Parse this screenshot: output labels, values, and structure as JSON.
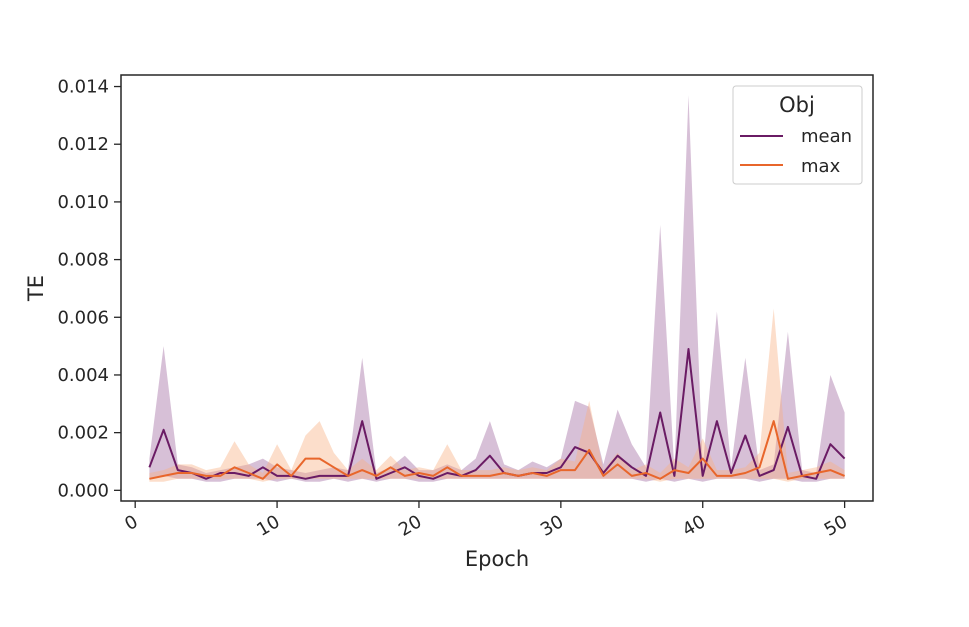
{
  "chart_data": {
    "type": "line",
    "xlabel": "Epoch",
    "ylabel": "TE",
    "xlim": [
      -1,
      52
    ],
    "ylim": [
      -0.00037,
      0.0144
    ],
    "x_ticks": [
      0,
      10,
      20,
      30,
      40,
      50
    ],
    "x_tick_labels": [
      "0",
      "10",
      "20",
      "30",
      "40",
      "50"
    ],
    "y_ticks": [
      0.0,
      0.002,
      0.004,
      0.006,
      0.008,
      0.01,
      0.012,
      0.014
    ],
    "y_tick_labels": [
      "0.000",
      "0.002",
      "0.004",
      "0.006",
      "0.008",
      "0.010",
      "0.012",
      "0.014"
    ],
    "grid": false,
    "legend": {
      "title": "Obj",
      "placement": "top-right"
    },
    "x": [
      1,
      2,
      3,
      4,
      5,
      6,
      7,
      8,
      9,
      10,
      11,
      12,
      13,
      14,
      15,
      16,
      17,
      18,
      19,
      20,
      21,
      22,
      23,
      24,
      25,
      26,
      27,
      28,
      29,
      30,
      31,
      32,
      33,
      34,
      35,
      36,
      37,
      38,
      39,
      40,
      41,
      42,
      43,
      44,
      45,
      46,
      47,
      48,
      49,
      50
    ],
    "series": [
      {
        "name": "mean",
        "color": "#6a1b64",
        "band_color": "#a06aa0",
        "values": [
          0.0008,
          0.0021,
          0.0007,
          0.0006,
          0.0004,
          0.0006,
          0.0006,
          0.0005,
          0.0008,
          0.0005,
          0.0005,
          0.0004,
          0.0005,
          0.0005,
          0.0005,
          0.0024,
          0.0004,
          0.0006,
          0.0008,
          0.0005,
          0.0004,
          0.0006,
          0.0005,
          0.0007,
          0.0012,
          0.0006,
          0.0005,
          0.0006,
          0.0006,
          0.0008,
          0.0015,
          0.0013,
          0.0006,
          0.0012,
          0.0008,
          0.0005,
          0.0027,
          0.0005,
          0.0049,
          0.0005,
          0.0024,
          0.0006,
          0.0019,
          0.0005,
          0.0007,
          0.0022,
          0.0005,
          0.0004,
          0.0016,
          0.0011
        ],
        "lower": [
          0.0004,
          0.0005,
          0.0004,
          0.0004,
          0.0003,
          0.0003,
          0.0004,
          0.0004,
          0.0004,
          0.0003,
          0.0004,
          0.0003,
          0.0003,
          0.0004,
          0.0003,
          0.0004,
          0.0003,
          0.0004,
          0.0004,
          0.0003,
          0.0003,
          0.0004,
          0.0004,
          0.0004,
          0.0004,
          0.0004,
          0.0004,
          0.0004,
          0.0004,
          0.0004,
          0.0004,
          0.0004,
          0.0004,
          0.0004,
          0.0004,
          0.0003,
          0.0004,
          0.0003,
          0.0004,
          0.0003,
          0.0004,
          0.0004,
          0.0004,
          0.0003,
          0.0004,
          0.0004,
          0.0003,
          0.0003,
          0.0004,
          0.0004
        ],
        "upper": [
          0.0011,
          0.005,
          0.0009,
          0.0008,
          0.0006,
          0.0007,
          0.0008,
          0.0009,
          0.0011,
          0.0008,
          0.0007,
          0.0006,
          0.0007,
          0.0008,
          0.0007,
          0.0046,
          0.0006,
          0.0008,
          0.0012,
          0.0007,
          0.0007,
          0.0009,
          0.0007,
          0.0011,
          0.0024,
          0.0009,
          0.0007,
          0.001,
          0.0008,
          0.0011,
          0.0031,
          0.0029,
          0.0009,
          0.0028,
          0.0016,
          0.0008,
          0.0092,
          0.0007,
          0.0137,
          0.0008,
          0.0062,
          0.0008,
          0.0046,
          0.0007,
          0.0009,
          0.0055,
          0.0007,
          0.0006,
          0.004,
          0.0027
        ]
      },
      {
        "name": "max",
        "color": "#e8662b",
        "band_color": "#f7b183",
        "values": [
          0.0004,
          0.0005,
          0.0006,
          0.0006,
          0.0005,
          0.0005,
          0.0008,
          0.0006,
          0.0004,
          0.0009,
          0.0005,
          0.0011,
          0.0011,
          0.0008,
          0.0005,
          0.0007,
          0.0005,
          0.0008,
          0.0005,
          0.0006,
          0.0005,
          0.0008,
          0.0005,
          0.0005,
          0.0005,
          0.0006,
          0.0005,
          0.0006,
          0.0005,
          0.0007,
          0.0007,
          0.0014,
          0.0005,
          0.0009,
          0.0005,
          0.0006,
          0.0004,
          0.0007,
          0.0006,
          0.0011,
          0.0005,
          0.0005,
          0.0006,
          0.0008,
          0.0024,
          0.0004,
          0.0005,
          0.0006,
          0.0007,
          0.0005
        ],
        "lower": [
          0.0003,
          0.0003,
          0.0004,
          0.0004,
          0.0004,
          0.0004,
          0.0004,
          0.0004,
          0.0003,
          0.0004,
          0.0004,
          0.0004,
          0.0004,
          0.0004,
          0.0004,
          0.0004,
          0.0004,
          0.0004,
          0.0004,
          0.0004,
          0.0004,
          0.0004,
          0.0004,
          0.0004,
          0.0004,
          0.0004,
          0.0004,
          0.0004,
          0.0004,
          0.0004,
          0.0004,
          0.0004,
          0.0004,
          0.0004,
          0.0004,
          0.0004,
          0.0003,
          0.0004,
          0.0004,
          0.0004,
          0.0004,
          0.0004,
          0.0004,
          0.0004,
          0.0004,
          0.0003,
          0.0004,
          0.0004,
          0.0004,
          0.0004
        ],
        "upper": [
          0.0006,
          0.0007,
          0.0009,
          0.0009,
          0.0007,
          0.0008,
          0.0017,
          0.0009,
          0.0006,
          0.0016,
          0.0007,
          0.0019,
          0.0024,
          0.0013,
          0.0007,
          0.0011,
          0.0007,
          0.0012,
          0.0007,
          0.0008,
          0.0007,
          0.0016,
          0.0007,
          0.0007,
          0.0007,
          0.0008,
          0.0007,
          0.0008,
          0.0007,
          0.0011,
          0.001,
          0.0031,
          0.0007,
          0.0013,
          0.0007,
          0.0009,
          0.0006,
          0.0011,
          0.0008,
          0.0018,
          0.0007,
          0.0007,
          0.0008,
          0.0013,
          0.0063,
          0.0006,
          0.0007,
          0.0008,
          0.001,
          0.0007
        ]
      }
    ]
  }
}
